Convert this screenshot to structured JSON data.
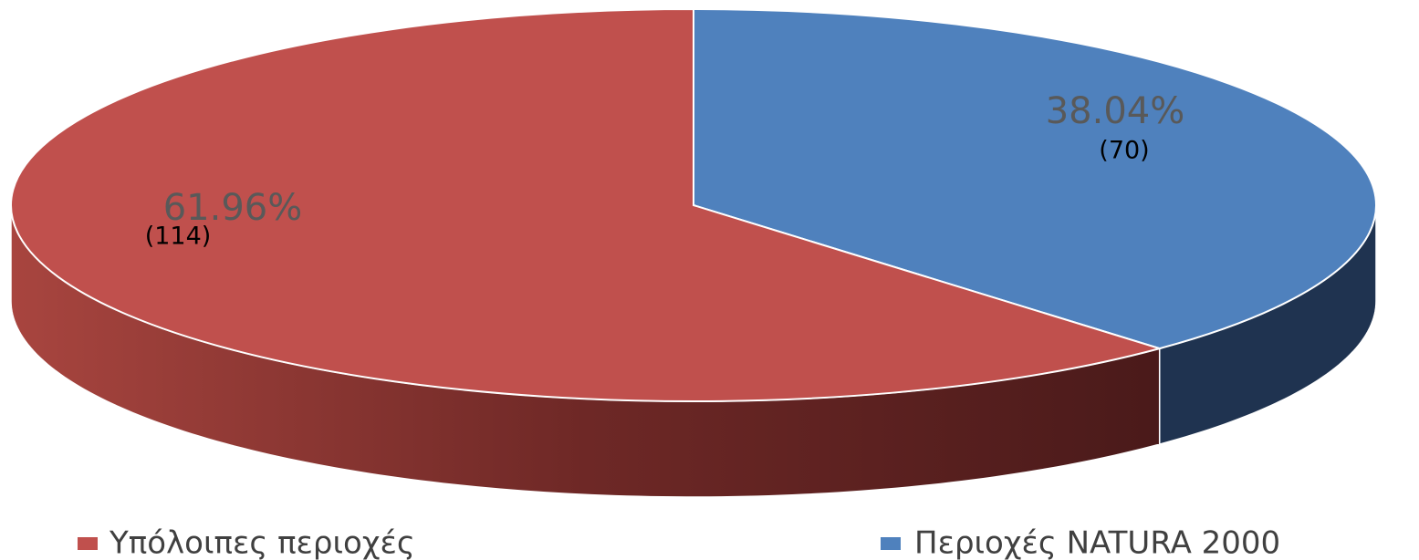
{
  "chart_data": {
    "type": "pie3d",
    "categories": [
      "Περιοχές NATURA 2000",
      "Υπόλοιπες περιοχές"
    ],
    "values": [
      38.04,
      61.96
    ],
    "value_labels": [
      "38.04%",
      "61.96%"
    ],
    "counts": [
      70,
      114
    ],
    "count_labels": [
      "(70)",
      "(114)"
    ],
    "colors": [
      "#4f81bd",
      "#c0504d"
    ],
    "side_colors": [
      "#1f3350",
      "#6e2826"
    ],
    "legend": "bottom"
  }
}
